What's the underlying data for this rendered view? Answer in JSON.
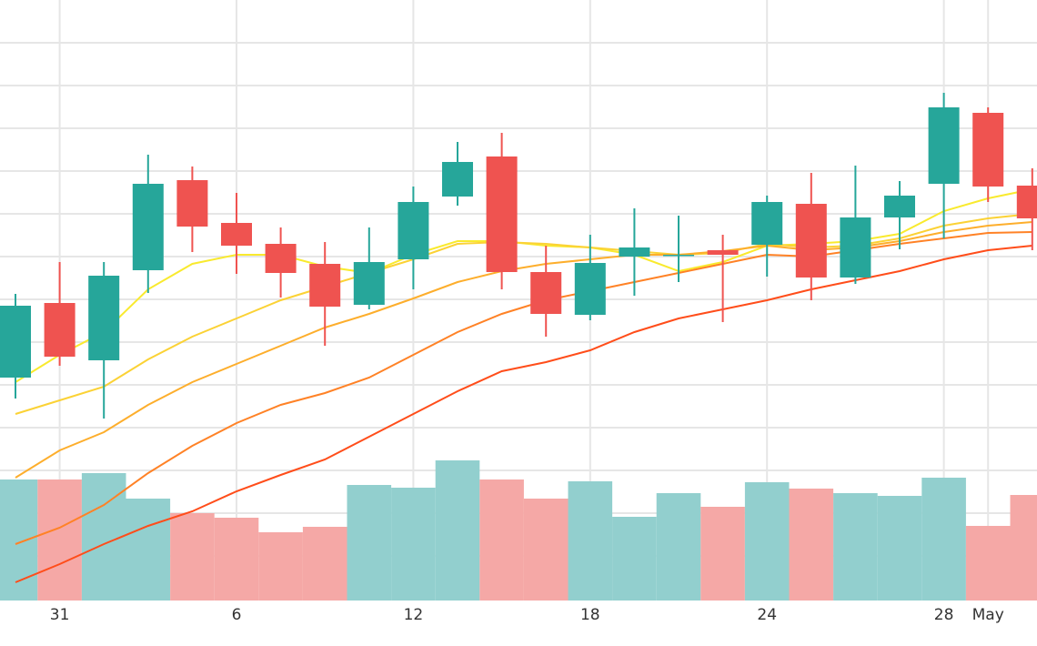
{
  "chart_data": {
    "type": "candlestick",
    "categories": [
      null,
      "31",
      null,
      null,
      null,
      "6",
      null,
      null,
      null,
      "12",
      null,
      null,
      null,
      "18",
      null,
      null,
      null,
      "24",
      null,
      null,
      null,
      "28",
      "May",
      null
    ],
    "open": [
      245,
      327,
      264,
      363,
      462,
      415,
      392,
      370,
      325,
      375,
      444,
      488,
      361,
      314,
      378,
      379,
      385,
      391,
      436,
      355,
      421,
      458,
      536,
      456
    ],
    "close": [
      324,
      268,
      357,
      458,
      411,
      390,
      360,
      323,
      372,
      438,
      482,
      361,
      315,
      371,
      388,
      380,
      380,
      438,
      355,
      421,
      445,
      542,
      455,
      420
    ],
    "high": [
      337,
      372,
      372,
      490,
      477,
      448,
      410,
      394,
      410,
      455,
      504,
      514,
      390,
      402,
      431,
      423,
      402,
      445,
      470,
      478,
      461,
      558,
      542,
      475
    ],
    "low": [
      222,
      258,
      200,
      338,
      383,
      359,
      333,
      280,
      320,
      342,
      434,
      342,
      290,
      308,
      335,
      350,
      306,
      356,
      330,
      348,
      386,
      398,
      438,
      385
    ],
    "up_color": "#26a69a",
    "down_color": "#ef5350",
    "volume": [
      133,
      133,
      140,
      112,
      96,
      91,
      75,
      81,
      127,
      124,
      154,
      133,
      112,
      131,
      92,
      118,
      103,
      130,
      123,
      118,
      115,
      135,
      82,
      116
    ],
    "volume_up_color": "#92cfce",
    "volume_down_color": "#f5a8a6",
    "series": [
      {
        "color": "#f9ea2e",
        "values": [
          240,
          270,
          295,
          342,
          370,
          380,
          380,
          367,
          360,
          380,
          395,
          395,
          390,
          388,
          380,
          362,
          372,
          390,
          392,
          395,
          403,
          428,
          442,
          452
        ]
      },
      {
        "color": "#fbd235",
        "values": [
          205,
          220,
          235,
          265,
          290,
          310,
          330,
          345,
          360,
          375,
          392,
          394,
          392,
          388,
          384,
          380,
          382,
          392,
          388,
          390,
          398,
          412,
          420,
          425
        ]
      },
      {
        "color": "#fdae2c",
        "values": [
          135,
          165,
          185,
          215,
          240,
          260,
          280,
          300,
          315,
          332,
          350,
          362,
          370,
          375,
          380,
          380,
          384,
          390,
          385,
          388,
          395,
          405,
          412,
          416
        ]
      },
      {
        "color": "#ff8226",
        "values": [
          62,
          80,
          105,
          140,
          170,
          195,
          215,
          228,
          245,
          270,
          295,
          315,
          330,
          340,
          350,
          360,
          370,
          380,
          378,
          385,
          392,
          398,
          404,
          405
        ]
      },
      {
        "color": "#ff4d1a",
        "values": [
          20,
          40,
          62,
          82,
          98,
          120,
          138,
          155,
          180,
          205,
          230,
          252,
          262,
          275,
          295,
          310,
          320,
          330,
          342,
          352,
          362,
          375,
          385,
          390
        ]
      }
    ],
    "ylim": [
      0,
      660
    ],
    "y2lim": [
      0,
      660
    ],
    "yticks": [
      49,
      96,
      143,
      190,
      237,
      284,
      331,
      378,
      425,
      472,
      519,
      566,
      613
    ],
    "grid": true
  }
}
